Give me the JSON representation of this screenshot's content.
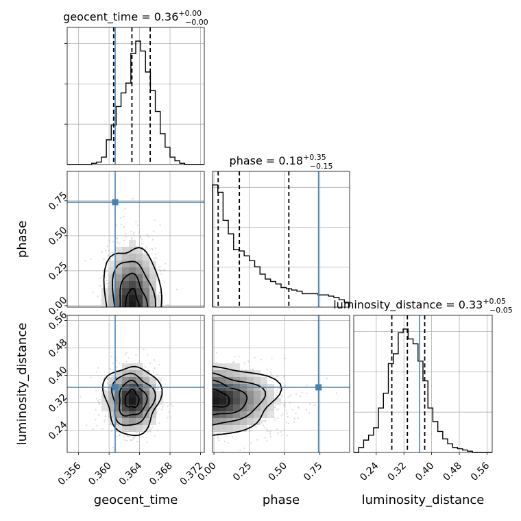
{
  "chart_data": {
    "type": "corner",
    "parameters": [
      {
        "key": "geocent_time",
        "label": "geocent_time",
        "title_name": "geocent_time",
        "title_median": "0.36",
        "title_plus": "+0.00",
        "title_minus": "−0.00",
        "range": [
          0.3545,
          0.3725
        ],
        "ticks": [
          0.356,
          0.36,
          0.364,
          0.368,
          0.372
        ],
        "tick_labels": [
          "0.356",
          "0.360",
          "0.364",
          "0.368",
          "0.372"
        ],
        "quantiles": [
          0.3606,
          0.363,
          0.3654
        ],
        "truth": 0.3608,
        "hist_counts": [
          0,
          0,
          0,
          0,
          0,
          1,
          2,
          6,
          20,
          32,
          47,
          58,
          66,
          90,
          100,
          92,
          75,
          60,
          43,
          25,
          14,
          6,
          3,
          1,
          0,
          0,
          0,
          0
        ]
      },
      {
        "key": "phase",
        "label": "phase",
        "title_name": "phase",
        "title_median": "0.18",
        "title_plus": "+0.35",
        "title_minus": "−0.15",
        "range": [
          -0.01,
          0.96
        ],
        "ticks": [
          0.0,
          0.25,
          0.5,
          0.75
        ],
        "tick_labels": [
          "0.00",
          "0.25",
          "0.50",
          "0.75"
        ],
        "quantiles": [
          0.03,
          0.18,
          0.53
        ],
        "truth": 0.74,
        "hist_counts": [
          100,
          94,
          71,
          60,
          47,
          46,
          42,
          38,
          33,
          27,
          23,
          21,
          19,
          16,
          15,
          14,
          13,
          11,
          11,
          11,
          10,
          10,
          9,
          8,
          6,
          4
        ]
      },
      {
        "key": "luminosity_distance",
        "label": "luminosity_distance",
        "title_name": "luminosity_distance",
        "title_median": "0.33",
        "title_plus": "+0.05",
        "title_minus": "−0.05",
        "range": [
          0.175,
          0.575
        ],
        "ticks": [
          0.24,
          0.32,
          0.4,
          0.48,
          0.56
        ],
        "tick_labels": [
          "0.24",
          "0.32",
          "0.40",
          "0.48",
          "0.56"
        ],
        "quantiles": [
          0.285,
          0.33,
          0.38
        ],
        "truth": 0.365,
        "hist_counts": [
          0,
          4,
          10,
          14,
          20,
          36,
          48,
          72,
          80,
          97,
          100,
          92,
          88,
          74,
          58,
          36,
          25,
          17,
          11,
          7,
          4,
          3,
          2,
          1,
          0,
          0,
          0,
          0
        ]
      }
    ],
    "truth_points": [
      {
        "x": "geocent_time",
        "y": "phase",
        "x_val": 0.3608,
        "y_val": 0.74
      },
      {
        "x": "geocent_time",
        "y": "luminosity_distance",
        "x_val": 0.3608,
        "y_val": 0.365
      },
      {
        "x": "phase",
        "y": "luminosity_distance",
        "x_val": 0.74,
        "y_val": 0.365
      }
    ],
    "pair_densities": [
      {
        "x": "geocent_time",
        "y": "phase",
        "x_center": 0.363,
        "y_center": 0.05,
        "x_sigma": 0.0018,
        "y_sigma": 0.22
      },
      {
        "x": "geocent_time",
        "y": "luminosity_distance",
        "x_center": 0.363,
        "y_center": 0.33,
        "x_sigma": 0.0018,
        "y_sigma": 0.05
      },
      {
        "x": "phase",
        "y": "luminosity_distance",
        "x_center": 0.08,
        "y_center": 0.33,
        "x_sigma": 0.22,
        "y_sigma": 0.05
      }
    ],
    "contour_levels": 4,
    "grid": true,
    "truth_color": "#4682b4",
    "line_color": "#000000"
  }
}
